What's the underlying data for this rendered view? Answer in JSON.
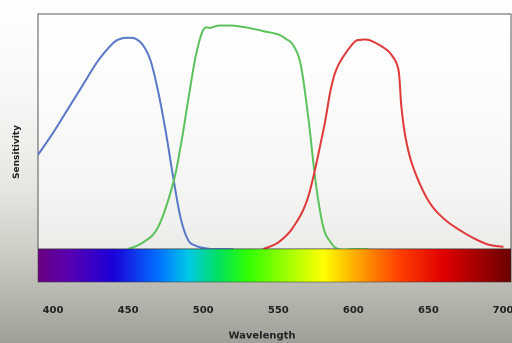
{
  "chart_data": {
    "type": "line",
    "xlabel": "Wavelength",
    "ylabel": "Sensitivity",
    "xlim": [
      390,
      705
    ],
    "ylim": [
      0,
      1.0
    ],
    "xticks": [
      400,
      450,
      500,
      550,
      600,
      650,
      700
    ],
    "grid": false,
    "legend": "none",
    "series": [
      {
        "color": "#5a78c8",
        "x": [
          390,
          400,
          410,
          420,
          430,
          440,
          445,
          450,
          455,
          460,
          465,
          470,
          475,
          480,
          485,
          490,
          495,
          500,
          505,
          510,
          515,
          520
        ],
        "y": [
          0.43,
          0.53,
          0.64,
          0.75,
          0.86,
          0.94,
          0.96,
          0.965,
          0.96,
          0.93,
          0.86,
          0.72,
          0.54,
          0.33,
          0.14,
          0.04,
          0.015,
          0.005,
          0.0,
          0.0,
          0.0,
          0.0
        ]
      },
      {
        "color": "#5cc25c",
        "x": [
          450,
          460,
          470,
          480,
          485,
          490,
          495,
          500,
          505,
          510,
          515,
          520,
          530,
          540,
          550,
          555,
          560,
          565,
          570,
          575,
          580,
          585,
          590,
          600,
          610
        ],
        "y": [
          0.0,
          0.03,
          0.1,
          0.3,
          0.47,
          0.68,
          0.88,
          1.0,
          1.01,
          1.02,
          1.02,
          1.02,
          1.01,
          0.995,
          0.98,
          0.96,
          0.93,
          0.84,
          0.6,
          0.3,
          0.1,
          0.03,
          0.0,
          0.0,
          0.0
        ]
      },
      {
        "color": "#e0393a",
        "x": [
          540,
          550,
          560,
          570,
          580,
          585,
          590,
          600,
          605,
          610,
          615,
          620,
          625,
          630,
          632,
          635,
          640,
          650,
          660,
          670,
          680,
          690,
          700
        ],
        "y": [
          0.0,
          0.03,
          0.1,
          0.24,
          0.54,
          0.73,
          0.84,
          0.94,
          0.955,
          0.955,
          0.94,
          0.92,
          0.89,
          0.82,
          0.65,
          0.5,
          0.37,
          0.22,
          0.14,
          0.09,
          0.05,
          0.02,
          0.01
        ]
      }
    ],
    "spectrum_bar": {
      "stops": [
        {
          "x": 390,
          "color": "#6a0080"
        },
        {
          "x": 410,
          "color": "#5a00b0"
        },
        {
          "x": 440,
          "color": "#1b00d8"
        },
        {
          "x": 470,
          "color": "#0070ff"
        },
        {
          "x": 490,
          "color": "#00c8e8"
        },
        {
          "x": 510,
          "color": "#00e060"
        },
        {
          "x": 530,
          "color": "#30ff00"
        },
        {
          "x": 560,
          "color": "#b0ff00"
        },
        {
          "x": 580,
          "color": "#ffff00"
        },
        {
          "x": 600,
          "color": "#ffb000"
        },
        {
          "x": 630,
          "color": "#ff4000"
        },
        {
          "x": 660,
          "color": "#e00000"
        },
        {
          "x": 705,
          "color": "#6a0000"
        }
      ]
    }
  }
}
